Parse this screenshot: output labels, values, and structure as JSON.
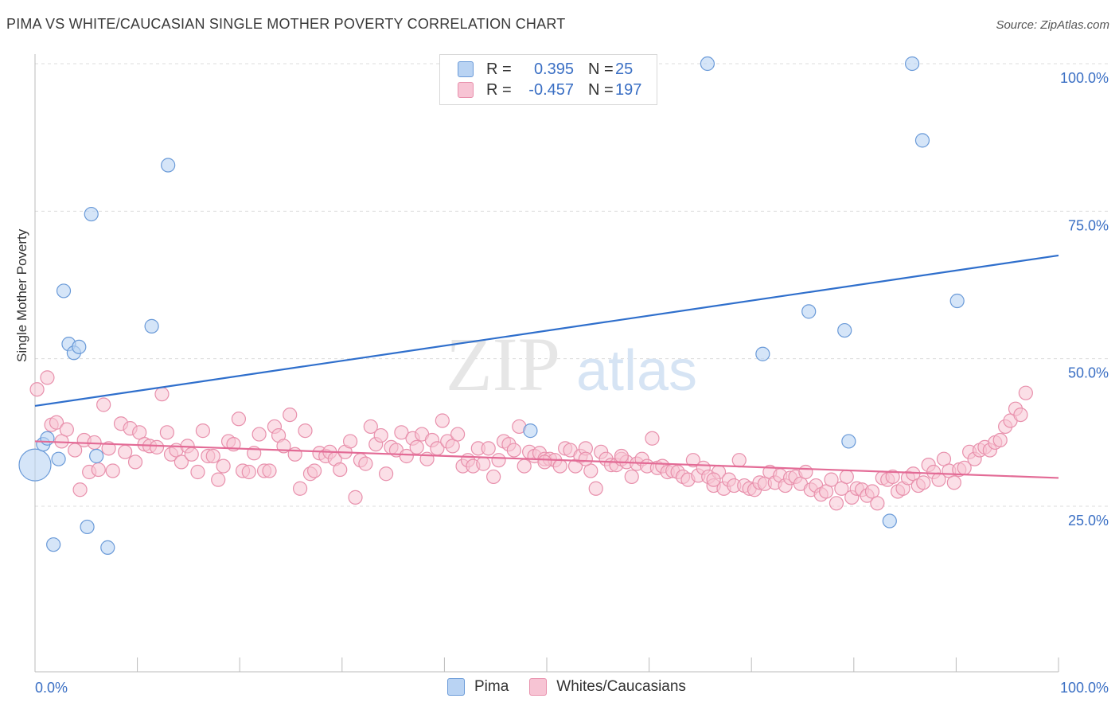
{
  "title": "PIMA VS WHITE/CAUCASIAN SINGLE MOTHER POVERTY CORRELATION CHART",
  "source": "Source: ZipAtlas.com",
  "watermark": {
    "zip": "ZIP",
    "atlas": "atlas"
  },
  "legend": {
    "rows": [
      {
        "r_label": "R =",
        "r_value": "0.395",
        "n_label": "N =",
        "n_value": "25"
      },
      {
        "r_label": "R =",
        "r_value": "-0.457",
        "n_label": "N =",
        "n_value": "197"
      }
    ]
  },
  "colors": {
    "pima_fill": "#b9d3f3",
    "pima_stroke": "#6a9ad8",
    "pima_line": "#2f6fcc",
    "white_fill": "#f7c4d4",
    "white_stroke": "#e890ac",
    "white_line": "#e36b96",
    "axis_text": "#3a6fc4",
    "grid": "#dcdcdc"
  },
  "chart_data": {
    "type": "scatter",
    "title": "PIMA VS WHITE/CAUCASIAN SINGLE MOTHER POVERTY CORRELATION CHART",
    "xlabel": "",
    "ylabel": "Single Mother Poverty",
    "xlim": [
      0,
      100
    ],
    "ylim": [
      0,
      105
    ],
    "x_tick_labels": [
      "0.0%",
      "100.0%"
    ],
    "y_ticks": [
      25,
      50,
      75,
      100
    ],
    "y_tick_labels": [
      "25.0%",
      "50.0%",
      "75.0%",
      "100.0%"
    ],
    "grid": true,
    "legend_position": "top-center",
    "series": [
      {
        "name": "Pima",
        "color": "#6a9ad8",
        "points": [
          [
            0.0,
            32.0
          ],
          [
            0.8,
            35.5
          ],
          [
            1.2,
            36.5
          ],
          [
            1.8,
            18.5
          ],
          [
            2.3,
            33.0
          ],
          [
            2.8,
            61.5
          ],
          [
            3.3,
            52.5
          ],
          [
            3.8,
            51.0
          ],
          [
            4.3,
            52.0
          ],
          [
            5.1,
            21.5
          ],
          [
            5.5,
            74.5
          ],
          [
            6.0,
            33.5
          ],
          [
            7.1,
            18.0
          ],
          [
            11.4,
            55.5
          ],
          [
            13.0,
            82.8
          ],
          [
            48.4,
            37.8
          ],
          [
            65.7,
            100.0
          ],
          [
            71.1,
            50.8
          ],
          [
            75.6,
            58.0
          ],
          [
            79.1,
            54.8
          ],
          [
            79.5,
            36.0
          ],
          [
            83.5,
            22.5
          ],
          [
            85.7,
            100.0
          ],
          [
            86.7,
            87.0
          ],
          [
            90.1,
            59.8
          ]
        ],
        "trend": [
          [
            0,
            42.0
          ],
          [
            100,
            67.5
          ]
        ]
      },
      {
        "name": "Whites/Caucasians",
        "color": "#e890ac",
        "points": [
          [
            0.2,
            44.8
          ],
          [
            1.2,
            46.8
          ],
          [
            1.6,
            38.8
          ],
          [
            2.1,
            39.2
          ],
          [
            2.6,
            36.0
          ],
          [
            3.1,
            38.0
          ],
          [
            3.9,
            34.5
          ],
          [
            4.4,
            27.8
          ],
          [
            4.8,
            36.2
          ],
          [
            5.3,
            30.8
          ],
          [
            5.8,
            35.8
          ],
          [
            6.2,
            31.2
          ],
          [
            6.7,
            42.2
          ],
          [
            7.2,
            34.8
          ],
          [
            7.6,
            31.0
          ],
          [
            8.4,
            39.0
          ],
          [
            8.8,
            34.2
          ],
          [
            9.3,
            38.2
          ],
          [
            9.8,
            32.5
          ],
          [
            10.2,
            37.5
          ],
          [
            10.7,
            35.5
          ],
          [
            11.2,
            35.2
          ],
          [
            11.9,
            35.0
          ],
          [
            12.4,
            44.0
          ],
          [
            12.9,
            37.5
          ],
          [
            13.3,
            33.8
          ],
          [
            13.8,
            34.5
          ],
          [
            14.3,
            32.5
          ],
          [
            14.9,
            35.2
          ],
          [
            15.3,
            33.8
          ],
          [
            15.9,
            30.8
          ],
          [
            16.4,
            37.8
          ],
          [
            16.9,
            33.5
          ],
          [
            17.4,
            33.5
          ],
          [
            17.9,
            29.5
          ],
          [
            18.4,
            31.8
          ],
          [
            18.9,
            36.0
          ],
          [
            19.4,
            35.5
          ],
          [
            19.9,
            39.8
          ],
          [
            20.3,
            31.0
          ],
          [
            20.9,
            30.8
          ],
          [
            21.4,
            34.0
          ],
          [
            21.9,
            37.2
          ],
          [
            22.4,
            31.0
          ],
          [
            22.9,
            31.0
          ],
          [
            23.4,
            38.5
          ],
          [
            23.8,
            37.0
          ],
          [
            24.3,
            35.2
          ],
          [
            24.9,
            40.5
          ],
          [
            25.4,
            33.8
          ],
          [
            25.9,
            28.0
          ],
          [
            26.4,
            37.8
          ],
          [
            26.9,
            30.5
          ],
          [
            27.3,
            31.0
          ],
          [
            27.8,
            34.0
          ],
          [
            28.4,
            33.5
          ],
          [
            28.8,
            34.2
          ],
          [
            29.3,
            33.0
          ],
          [
            29.8,
            31.2
          ],
          [
            30.3,
            34.2
          ],
          [
            30.8,
            36.0
          ],
          [
            31.3,
            26.5
          ],
          [
            31.8,
            32.8
          ],
          [
            32.3,
            32.2
          ],
          [
            32.8,
            38.5
          ],
          [
            33.3,
            35.5
          ],
          [
            33.8,
            37.0
          ],
          [
            34.3,
            30.5
          ],
          [
            34.8,
            35.0
          ],
          [
            35.3,
            34.5
          ],
          [
            35.8,
            37.5
          ],
          [
            36.3,
            33.5
          ],
          [
            36.9,
            36.5
          ],
          [
            37.3,
            35.0
          ],
          [
            37.8,
            37.2
          ],
          [
            38.3,
            33.0
          ],
          [
            38.8,
            36.2
          ],
          [
            39.3,
            34.8
          ],
          [
            39.8,
            39.5
          ],
          [
            40.3,
            36.0
          ],
          [
            40.8,
            35.2
          ],
          [
            41.3,
            37.2
          ],
          [
            41.8,
            31.8
          ],
          [
            42.3,
            32.8
          ],
          [
            42.8,
            31.8
          ],
          [
            43.3,
            34.8
          ],
          [
            43.8,
            32.2
          ],
          [
            44.3,
            34.8
          ],
          [
            44.8,
            30.0
          ],
          [
            45.3,
            32.8
          ],
          [
            45.8,
            36.0
          ],
          [
            46.3,
            35.5
          ],
          [
            46.8,
            34.5
          ],
          [
            47.3,
            38.5
          ],
          [
            47.8,
            31.8
          ],
          [
            48.3,
            34.2
          ],
          [
            48.8,
            33.5
          ],
          [
            49.3,
            34.0
          ],
          [
            49.8,
            33.0
          ],
          [
            50.3,
            33.0
          ],
          [
            50.8,
            32.8
          ],
          [
            51.3,
            31.8
          ],
          [
            51.8,
            34.8
          ],
          [
            52.3,
            34.5
          ],
          [
            52.8,
            31.8
          ],
          [
            53.3,
            33.5
          ],
          [
            53.8,
            34.8
          ],
          [
            54.3,
            31.0
          ],
          [
            54.8,
            28.0
          ],
          [
            55.3,
            34.2
          ],
          [
            55.8,
            33.0
          ],
          [
            56.3,
            32.0
          ],
          [
            56.8,
            32.0
          ],
          [
            57.3,
            33.0
          ],
          [
            57.8,
            32.5
          ],
          [
            58.3,
            30.0
          ],
          [
            58.8,
            32.2
          ],
          [
            59.3,
            33.0
          ],
          [
            59.8,
            31.8
          ],
          [
            60.3,
            36.5
          ],
          [
            60.8,
            31.5
          ],
          [
            61.3,
            31.8
          ],
          [
            61.8,
            30.8
          ],
          [
            62.3,
            31.0
          ],
          [
            62.8,
            30.8
          ],
          [
            63.3,
            30.0
          ],
          [
            63.8,
            29.5
          ],
          [
            64.3,
            32.8
          ],
          [
            64.8,
            30.2
          ],
          [
            65.3,
            31.5
          ],
          [
            65.8,
            30.0
          ],
          [
            66.3,
            28.5
          ],
          [
            66.8,
            30.8
          ],
          [
            67.3,
            28.0
          ],
          [
            67.8,
            29.5
          ],
          [
            68.3,
            28.5
          ],
          [
            68.8,
            32.8
          ],
          [
            69.3,
            28.5
          ],
          [
            69.8,
            28.0
          ],
          [
            70.3,
            27.8
          ],
          [
            70.8,
            29.0
          ],
          [
            71.3,
            28.8
          ],
          [
            71.8,
            30.8
          ],
          [
            72.3,
            29.0
          ],
          [
            72.8,
            30.2
          ],
          [
            73.3,
            28.5
          ],
          [
            73.8,
            29.8
          ],
          [
            74.3,
            30.0
          ],
          [
            74.8,
            28.8
          ],
          [
            75.3,
            30.8
          ],
          [
            75.8,
            27.8
          ],
          [
            76.3,
            28.5
          ],
          [
            76.8,
            27.0
          ],
          [
            77.3,
            27.5
          ],
          [
            77.8,
            29.5
          ],
          [
            78.3,
            25.5
          ],
          [
            78.8,
            28.0
          ],
          [
            79.3,
            30.0
          ],
          [
            79.8,
            26.5
          ],
          [
            80.3,
            28.0
          ],
          [
            80.8,
            27.8
          ],
          [
            81.3,
            26.8
          ],
          [
            81.8,
            27.5
          ],
          [
            82.3,
            25.5
          ],
          [
            82.8,
            29.8
          ],
          [
            83.3,
            29.5
          ],
          [
            83.8,
            30.0
          ],
          [
            84.3,
            27.5
          ],
          [
            84.8,
            28.0
          ],
          [
            85.3,
            29.8
          ],
          [
            85.8,
            30.5
          ],
          [
            86.3,
            28.5
          ],
          [
            86.8,
            29.0
          ],
          [
            87.3,
            32.0
          ],
          [
            87.8,
            30.8
          ],
          [
            88.3,
            29.5
          ],
          [
            88.8,
            33.0
          ],
          [
            89.3,
            31.0
          ],
          [
            89.8,
            29.0
          ],
          [
            90.3,
            31.2
          ],
          [
            90.8,
            31.5
          ],
          [
            91.3,
            34.2
          ],
          [
            91.8,
            33.0
          ],
          [
            92.3,
            34.5
          ],
          [
            92.8,
            35.0
          ],
          [
            93.3,
            34.5
          ],
          [
            93.8,
            35.8
          ],
          [
            94.3,
            36.2
          ],
          [
            94.8,
            38.5
          ],
          [
            95.3,
            39.5
          ],
          [
            95.8,
            41.5
          ],
          [
            96.3,
            40.5
          ],
          [
            96.8,
            44.2
          ],
          [
            49.8,
            32.5
          ],
          [
            53.8,
            33.0
          ],
          [
            57.3,
            33.5
          ],
          [
            66.3,
            29.5
          ]
        ],
        "trend": [
          [
            0,
            36.0
          ],
          [
            100,
            29.8
          ]
        ]
      }
    ]
  }
}
